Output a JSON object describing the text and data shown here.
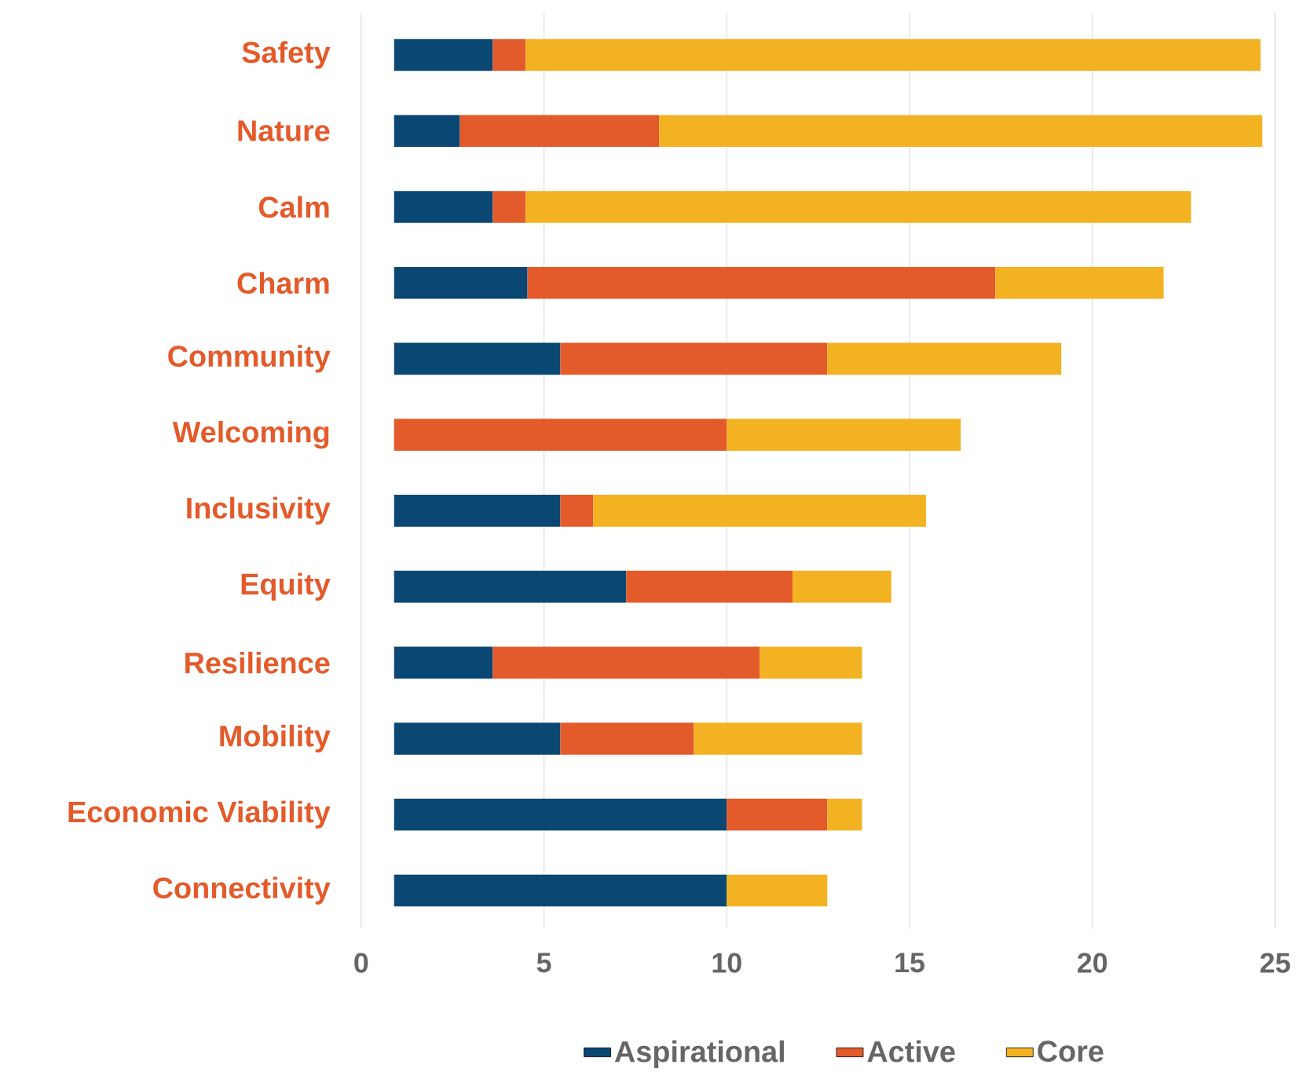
{
  "chart_data": {
    "type": "bar",
    "orientation": "horizontal",
    "categories": [
      "Safety",
      "Nature",
      "Calm",
      "Charm",
      "Community",
      "Welcoming",
      "Inclusivity",
      "Equity",
      "Resilience",
      "Mobility",
      "Economic Viability",
      "Connectivity"
    ],
    "series": [
      {
        "name": "Aspirational",
        "color": "#0b4773",
        "base": [
          0.9,
          0.9,
          0.9,
          0.9,
          0.9,
          null,
          0.9,
          0.9,
          0.9,
          0.9,
          0.9,
          0.9
        ],
        "values": [
          2.7,
          1.8,
          2.7,
          3.65,
          4.55,
          null,
          4.55,
          6.35,
          2.7,
          4.55,
          9.1,
          9.1
        ]
      },
      {
        "name": "Active",
        "color": "#e35b2b",
        "base": [
          3.6,
          2.7,
          3.6,
          4.55,
          5.45,
          0.9,
          5.45,
          7.25,
          3.6,
          5.45,
          10.0,
          null
        ],
        "values": [
          0.9,
          5.45,
          0.9,
          12.8,
          7.3,
          9.1,
          0.9,
          4.55,
          7.3,
          3.65,
          2.75,
          null
        ]
      },
      {
        "name": "Core",
        "color": "#f3b222",
        "base": [
          4.5,
          8.15,
          4.5,
          17.35,
          12.75,
          10.0,
          6.35,
          11.8,
          10.9,
          9.1,
          12.75,
          10.0
        ],
        "values": [
          20.1,
          16.5,
          18.2,
          4.6,
          6.4,
          6.4,
          9.1,
          2.7,
          2.8,
          4.6,
          0.95,
          2.75
        ]
      }
    ],
    "xlim": [
      0,
      25
    ],
    "xticks": [
      0,
      5,
      10,
      15,
      20,
      25
    ],
    "grid": "x",
    "legend": "bottom"
  }
}
